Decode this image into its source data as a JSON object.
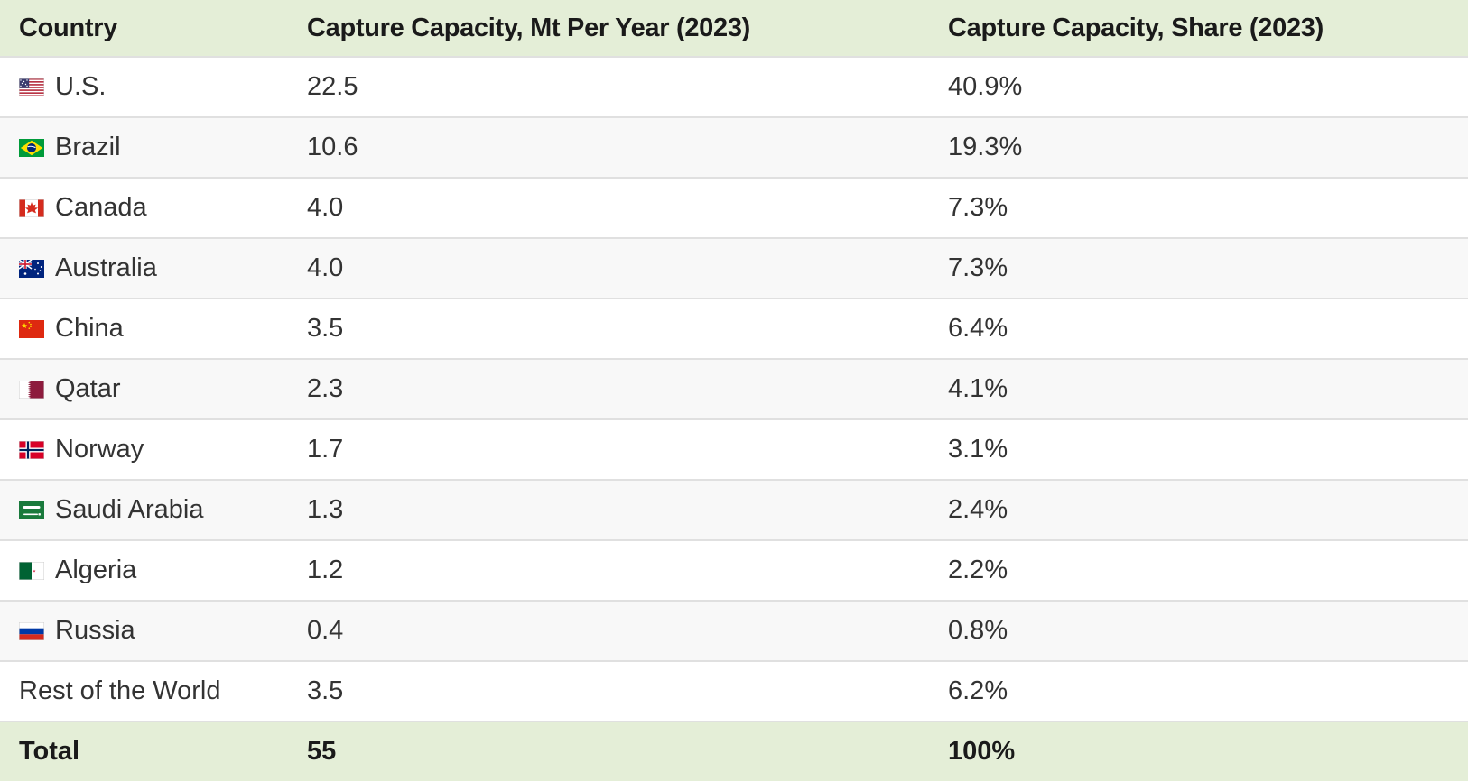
{
  "table": {
    "columns": [
      "Country",
      "Capture Capacity, Mt Per Year (2023)",
      "Capture Capacity, Share (2023)"
    ],
    "rows": [
      {
        "country": "U.S.",
        "flag": "us-flag-icon",
        "capacity": "22.5",
        "share": "40.9%"
      },
      {
        "country": "Brazil",
        "flag": "brazil-flag-icon",
        "capacity": "10.6",
        "share": "19.3%"
      },
      {
        "country": "Canada",
        "flag": "canada-flag-icon",
        "capacity": "4.0",
        "share": "7.3%"
      },
      {
        "country": "Australia",
        "flag": "australia-flag-icon",
        "capacity": "4.0",
        "share": "7.3%"
      },
      {
        "country": "China",
        "flag": "china-flag-icon",
        "capacity": "3.5",
        "share": "6.4%"
      },
      {
        "country": "Qatar",
        "flag": "qatar-flag-icon",
        "capacity": "2.3",
        "share": "4.1%"
      },
      {
        "country": "Norway",
        "flag": "norway-flag-icon",
        "capacity": "1.7",
        "share": "3.1%"
      },
      {
        "country": "Saudi Arabia",
        "flag": "saudi-arabia-flag-icon",
        "capacity": "1.3",
        "share": "2.4%"
      },
      {
        "country": "Algeria",
        "flag": "algeria-flag-icon",
        "capacity": "1.2",
        "share": "2.2%"
      },
      {
        "country": "Russia",
        "flag": "russia-flag-icon",
        "capacity": "0.4",
        "share": "0.8%"
      },
      {
        "country": "Rest of the World",
        "flag": null,
        "capacity": "3.5",
        "share": "6.2%"
      }
    ],
    "total": {
      "label": "Total",
      "capacity": "55",
      "share": "100%"
    }
  },
  "chart_data": {
    "type": "table",
    "columns": [
      "Country",
      "Capture Capacity, Mt Per Year (2023)",
      "Capture Capacity, Share (2023)"
    ],
    "rows": [
      [
        "U.S.",
        22.5,
        "40.9%"
      ],
      [
        "Brazil",
        10.6,
        "19.3%"
      ],
      [
        "Canada",
        4.0,
        "7.3%"
      ],
      [
        "Australia",
        4.0,
        "7.3%"
      ],
      [
        "China",
        3.5,
        "6.4%"
      ],
      [
        "Qatar",
        2.3,
        "4.1%"
      ],
      [
        "Norway",
        1.7,
        "3.1%"
      ],
      [
        "Saudi Arabia",
        1.3,
        "2.4%"
      ],
      [
        "Algeria",
        1.2,
        "2.2%"
      ],
      [
        "Russia",
        0.4,
        "0.8%"
      ],
      [
        "Rest of the World",
        3.5,
        "6.2%"
      ],
      [
        "Total",
        55,
        "100%"
      ]
    ]
  },
  "colors": {
    "header_bg": "#e4eed7",
    "total_bg": "#e4eed7",
    "stripe_bg": "#f8f8f8",
    "row_border": "#e0e0e0",
    "header_text": "#1a1a1a",
    "body_text": "#333333"
  }
}
